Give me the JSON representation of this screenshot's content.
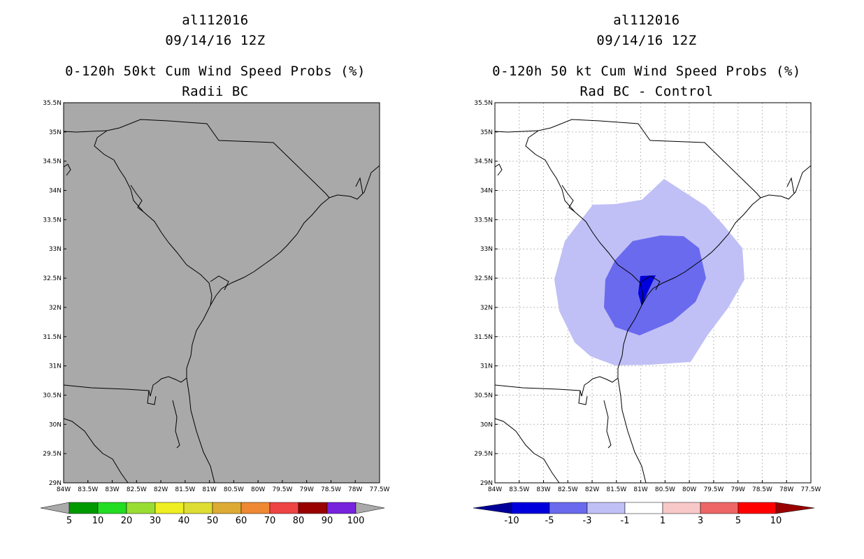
{
  "left": {
    "storm": "al112016",
    "date": "09/14/16 12Z",
    "title": "0-120h 50kt Cum Wind Speed Probs (%)",
    "subtitle": "Radii BC",
    "colorbar": {
      "colors": [
        "#009900",
        "#22dd22",
        "#99dd33",
        "#eeee22",
        "#dddd33",
        "#ddaa33",
        "#ee8833",
        "#ee4444",
        "#990000",
        "#7722dd"
      ],
      "labels": [
        "5",
        "10",
        "20",
        "30",
        "40",
        "50",
        "60",
        "70",
        "80",
        "90",
        "100"
      ]
    }
  },
  "right": {
    "storm": "al112016",
    "date": "09/14/16 12Z",
    "title": "0-120h 50 kt Cum Wind Speed Probs (%)",
    "subtitle": "Rad BC - Control",
    "colorbar": {
      "colors": [
        "#0000dd",
        "#6a6aee",
        "#c0c0f6",
        "#ffffff",
        "#f8c8c8",
        "#ee6666",
        "#ff0000"
      ],
      "left_end": "#000099",
      "right_end": "#990000",
      "labels": [
        "-10",
        "-5",
        "-3",
        "-1",
        "1",
        "3",
        "5",
        "10"
      ]
    }
  },
  "axes": {
    "lat_labels": [
      "35.5N",
      "35N",
      "34.5N",
      "34N",
      "33.5N",
      "33N",
      "32.5N",
      "32N",
      "31.5N",
      "31N",
      "30.5N",
      "30N",
      "29.5N",
      "29N"
    ],
    "lon_labels": [
      "84W",
      "83.5W",
      "83W",
      "82.5W",
      "82W",
      "81.5W",
      "81W",
      "80.5W",
      "80W",
      "79.5W",
      "79W",
      "78.5W",
      "78W",
      "77.5W"
    ]
  },
  "colors": {
    "land_left": "#a9a9a9",
    "outer_contour": "#c0c0f6",
    "middle_contour": "#6a6aee",
    "inner_contour": "#0000dd",
    "grid": "#bbbbbb"
  }
}
